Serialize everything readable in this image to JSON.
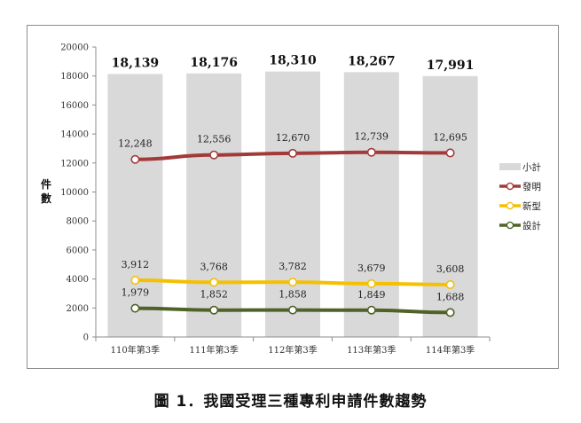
{
  "caption": "圖 1．我國受理三種專利申請件數趨勢",
  "chart_data": {
    "type": "bar",
    "categories": [
      "110年第3季",
      "111年第3季",
      "112年第3季",
      "113年第3季",
      "114年第3季"
    ],
    "ylabel": "件數",
    "ylim": [
      0,
      20000
    ],
    "yticks": [
      "0",
      "2000",
      "4000",
      "6000",
      "8000",
      "10000",
      "12000",
      "14000",
      "16000",
      "18000",
      "20000"
    ],
    "ytick_values": [
      0,
      2000,
      4000,
      6000,
      8000,
      10000,
      12000,
      14000,
      16000,
      18000,
      20000
    ],
    "grid": false,
    "legend_position": "right",
    "series": [
      {
        "name": "小計",
        "kind": "bar",
        "color": "#d9d9d9",
        "values": [
          18139,
          18176,
          18310,
          18267,
          17991
        ],
        "labels": [
          "18,139",
          "18,176",
          "18,310",
          "18,267",
          "17,991"
        ]
      },
      {
        "name": "發明",
        "kind": "line",
        "color": "#a33a3a",
        "values": [
          12248,
          12556,
          12670,
          12739,
          12695
        ],
        "labels": [
          "12,248",
          "12,556",
          "12,670",
          "12,739",
          "12,695"
        ]
      },
      {
        "name": "新型",
        "kind": "line",
        "color": "#f5c000",
        "values": [
          3912,
          3768,
          3782,
          3679,
          3608
        ],
        "labels": [
          "3,912",
          "3,768",
          "3,782",
          "3,679",
          "3,608"
        ]
      },
      {
        "name": "設計",
        "kind": "line",
        "color": "#4f6228",
        "values": [
          1979,
          1852,
          1858,
          1849,
          1688
        ],
        "labels": [
          "1,979",
          "1,852",
          "1,858",
          "1,849",
          "1,688"
        ]
      }
    ]
  }
}
